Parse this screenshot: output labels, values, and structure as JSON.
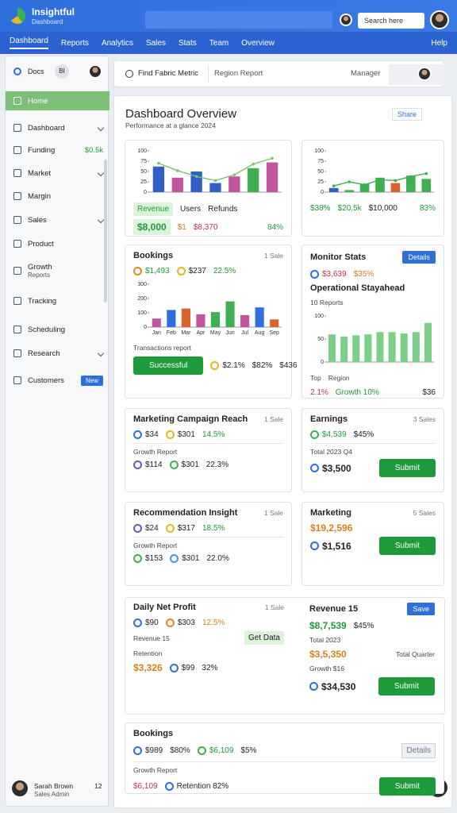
{
  "header": {
    "brand": "Insightful",
    "tagline": "Dashboard",
    "search": "Search here"
  },
  "nav": {
    "items": [
      "Dashboard",
      "Reports",
      "Analytics",
      "Sales",
      "Stats",
      "Team",
      "Overview"
    ],
    "help": "Help"
  },
  "sidebar": {
    "top": {
      "label": "Docs",
      "tag": "BI"
    },
    "items": [
      {
        "label": "Home",
        "active": true
      },
      {
        "label": "Dashboard",
        "chevron": true
      },
      {
        "label": "Funding",
        "value": "$0.5k"
      },
      {
        "label": "Market",
        "chevron": true
      },
      {
        "label": "Margin"
      },
      {
        "label": "Sales",
        "chevron": true
      },
      {
        "label": "Product"
      },
      {
        "label": "Growth",
        "sub": "Reports"
      },
      {
        "label": "Tracking"
      },
      {
        "label": "Scheduling"
      },
      {
        "label": "Research",
        "chevron": true
      },
      {
        "label": "Customers",
        "badge": "New"
      }
    ],
    "footer": {
      "name": "Sarah Brown",
      "role": "Sales Admin",
      "count": "12"
    }
  },
  "toolbar": {
    "search": "Find Fabric Metric",
    "filter": "Region Report",
    "manager": "Manager"
  },
  "page": {
    "title": "Dashboard Overview",
    "subtitle": "Performance at a glance 2024",
    "share": "Share"
  },
  "cards": [
    {
      "blocks": [
        {
          "chart": {
            "values": [
              62,
              35,
              50,
              22,
              38,
              58,
              72
            ],
            "colors": [
              "#2f5fc9",
              "#c2559b",
              "#2f5fc9",
              "#2f5fc9",
              "#c2559b",
              "#3fb052",
              "#c2559b"
            ],
            "line": [
              70,
              52,
              38,
              28,
              42,
              68,
              82
            ],
            "line_color": "#7ac36a",
            "ylim": [
              0,
              100
            ],
            "yticks": [
              0,
              25,
              50,
              75,
              100
            ]
          }
        },
        {
          "items": [
            {
              "text": "Revenue",
              "tone": "green",
              "box": "light"
            },
            {
              "text": "Users"
            },
            {
              "text": "Refunds"
            }
          ]
        },
        {
          "items": [
            {
              "text": "$8,000",
              "tone": "green",
              "box": "light",
              "size": "big"
            },
            {
              "text": "$1",
              "tone": "orange"
            },
            {
              "text": "$8,370",
              "tone": "red"
            },
            {
              "text": "84%",
              "tone": "green",
              "right": true
            }
          ]
        }
      ]
    },
    {
      "blocks": [
        {
          "chart": {
            "values": [
              10,
              5,
              20,
              35,
              22,
              40,
              32
            ],
            "colors": [
              "#2f5fc9",
              "#3fb052",
              "#3fb052",
              "#3fb052",
              "#d8642c",
              "#3fb052",
              "#3fb052"
            ],
            "line": [
              15,
              25,
              18,
              30,
              28,
              38,
              45
            ],
            "line_color": "#3fb052",
            "ylim": [
              0,
              100
            ],
            "yticks": [
              0,
              25,
              50,
              75,
              100
            ]
          }
        },
        {
          "items": [
            {
              "text": "$38%",
              "tone": "green"
            },
            {
              "text": "$20.5k",
              "tone": "green"
            },
            {
              "text": "$10,000"
            },
            {
              "text": "83%",
              "tone": "green",
              "right": true
            }
          ]
        }
      ]
    },
    {
      "title": "Bookings",
      "meta": "1 Sale",
      "blocks": [
        {
          "items": [
            {
              "text": "$1,493",
              "tone": "green",
              "icon": "#e08a1e"
            },
            {
              "text": "$237",
              "icon": "#e3b925"
            },
            {
              "text": "22.5%",
              "tone": "green"
            }
          ]
        },
        {
          "chart": {
            "categories": [
              "Jan",
              "Feb",
              "Mar",
              "Apr",
              "May",
              "Jun",
              "Jul",
              "Aug",
              "Sep"
            ],
            "values": [
              60,
              120,
              130,
              90,
              105,
              180,
              84,
              138,
              54
            ],
            "colors": [
              "#c2559b",
              "#2f6fdc",
              "#d8642c",
              "#c2559b",
              "#3fb052",
              "#3fb052",
              "#c2559b",
              "#2f6fdc",
              "#d8642c"
            ],
            "ylim": [
              0,
              300
            ],
            "yticks": [
              0,
              100,
              200,
              300
            ]
          }
        },
        {
          "items": [
            {
              "text": "Transactions report",
              "size": "small"
            }
          ]
        },
        {
          "items": [
            {
              "text": "Successful",
              "box": "solid"
            },
            {
              "text": "$2.1%",
              "icon": "#e3b925"
            },
            {
              "text": "$82%"
            },
            {
              "text": "$436",
              "right": true
            }
          ]
        }
      ]
    },
    {
      "title": "Monitor Stats",
      "button": "Details",
      "blocks": [
        {
          "items": [
            {
              "text": "$3,639",
              "tone": "red",
              "icon": "#2f6fdc"
            },
            {
              "text": "$35%",
              "tone": "orange"
            }
          ]
        },
        {
          "items": [
            {
              "text": "Operational Stayahead",
              "size": "head"
            }
          ]
        },
        {
          "items": [
            {
              "text": "10 Reports",
              "size": "small"
            }
          ]
        },
        {
          "chart": {
            "values": [
              60,
              55,
              58,
              60,
              65,
              65,
              62,
              65,
              85
            ],
            "colors": [
              "#7ccf86",
              "#7ccf86",
              "#7ccf86",
              "#7ccf86",
              "#7ccf86",
              "#7ccf86",
              "#7ccf86",
              "#7ccf86",
              "#7ccf86"
            ],
            "ylim": [
              0,
              100
            ],
            "yticks": [
              0,
              50,
              100
            ]
          }
        },
        {
          "items": [
            {
              "text": "Top",
              "size": "small"
            },
            {
              "text": "Region",
              "size": "small"
            }
          ]
        },
        {
          "items": [
            {
              "text": "2.1%",
              "tone": "red"
            },
            {
              "text": "Growth 10%",
              "tone": "green"
            },
            {
              "text": "$36",
              "right": true
            }
          ]
        }
      ]
    },
    {
      "title": "Marketing Campaign Reach",
      "meta": "1 Sale",
      "blocks": [
        {
          "items": [
            {
              "text": "$34",
              "icon": "#2f6fdc"
            },
            {
              "text": "$301",
              "icon": "#e3b925"
            },
            {
              "text": "14.5%",
              "tone": "green"
            }
          ]
        },
        {
          "items": [
            {
              "text": "Growth Report",
              "size": "small"
            }
          ],
          "rule": true
        },
        {
          "items": [
            {
              "text": "$114",
              "icon": "#5a5fbf"
            },
            {
              "text": "$301",
              "icon": "#3fb052"
            },
            {
              "text": "22.3%"
            }
          ]
        }
      ]
    },
    {
      "title": "Earnings",
      "meta": "3 Sales",
      "blocks": [
        {
          "items": [
            {
              "text": "$4,539",
              "tone": "green",
              "icon": "#3fb052"
            },
            {
              "text": "$45%"
            }
          ]
        },
        {
          "items": [
            {
              "text": "Total 2023 Q4",
              "size": "small"
            }
          ],
          "rule": true
        },
        {
          "items": [
            {
              "text": "$3,500",
              "size": "big",
              "icon": "#2f6fdc"
            },
            {
              "text": "Submit",
              "box": "solid",
              "right": true
            }
          ]
        }
      ]
    },
    {
      "title": "Recommendation Insight",
      "meta": "1 Sale",
      "blocks": [
        {
          "items": [
            {
              "text": "$24",
              "icon": "#5a5fbf"
            },
            {
              "text": "$317",
              "icon": "#e3b925"
            },
            {
              "text": "18.5%",
              "tone": "green"
            }
          ]
        },
        {
          "items": [
            {
              "text": "Growth Report",
              "size": "small"
            }
          ],
          "rule": true
        },
        {
          "items": [
            {
              "text": "$153",
              "icon": "#3fb052"
            },
            {
              "text": "$301",
              "icon": "#2f9adc"
            },
            {
              "text": "22.0%"
            }
          ]
        }
      ]
    },
    {
      "title": "Marketing",
      "meta": "5 Sales",
      "blocks": [
        {
          "items": [
            {
              "text": "$19,2,596",
              "tone": "orange",
              "size": "big"
            }
          ]
        },
        {
          "items": [
            {
              "text": "$1,516",
              "size": "big",
              "icon": "#2f6fdc"
            },
            {
              "text": "Submit",
              "box": "solid",
              "right": true
            }
          ]
        }
      ]
    },
    {
      "title": "Daily Net Profit",
      "meta": "1 Sale",
      "blocks": [
        {
          "items": [
            {
              "text": "$90",
              "icon": "#2f6fdc"
            },
            {
              "text": "$303",
              "icon": "#e08a1e"
            },
            {
              "text": "12.5%",
              "tone": "orange"
            }
          ]
        },
        {
          "items": [
            {
              "text": "Revenue 15",
              "size": "small"
            },
            {
              "text": "Get Data",
              "box": "light",
              "right": true
            }
          ]
        },
        {
          "items": [
            {
              "text": "Retention",
              "size": "small"
            }
          ]
        },
        {
          "items": [
            {
              "text": "$3,326",
              "tone": "orange",
              "size": "big"
            },
            {
              "text": "$99",
              "icon": "#2f6fdc"
            },
            {
              "text": "32%"
            }
          ]
        }
      ]
    },
    {
      "title": "Revenue 15",
      "button": "Save",
      "blocks": [
        {
          "items": [
            {
              "text": "$8,7,539",
              "tone": "green",
              "size": "big"
            },
            {
              "text": "$45%"
            }
          ]
        },
        {
          "items": [
            {
              "text": "Total 2023",
              "size": "small"
            }
          ]
        },
        {
          "items": [
            {
              "text": "$3,5,350",
              "tone": "orange",
              "size": "big"
            },
            {
              "text": "Total Quarter",
              "size": "small",
              "right": true
            }
          ]
        },
        {
          "items": [
            {
              "text": "Growth $16",
              "size": "small"
            }
          ]
        },
        {
          "items": [
            {
              "text": "$34,530",
              "size": "big",
              "icon": "#2f6fdc"
            },
            {
              "text": "Submit",
              "box": "solid",
              "right": true
            }
          ]
        }
      ]
    },
    {
      "title": "Bookings",
      "blocks": [
        {
          "items": [
            {
              "text": "$989",
              "icon": "#2f6fdc"
            },
            {
              "text": "$80%"
            },
            {
              "text": "$6,109",
              "tone": "green",
              "icon": "#3fb052"
            },
            {
              "text": "$5%"
            },
            {
              "text": "Details",
              "box": "gray",
              "right": true
            }
          ]
        },
        {
          "items": [
            {
              "text": "Growth Report",
              "size": "small"
            }
          ],
          "rule": true
        },
        {
          "items": [
            {
              "text": "$6,109",
              "tone": "red"
            },
            {
              "text": "Retention 82%",
              "icon": "#2f6fdc"
            },
            {
              "text": "Submit",
              "box": "solid",
              "right": true
            }
          ]
        }
      ]
    }
  ]
}
